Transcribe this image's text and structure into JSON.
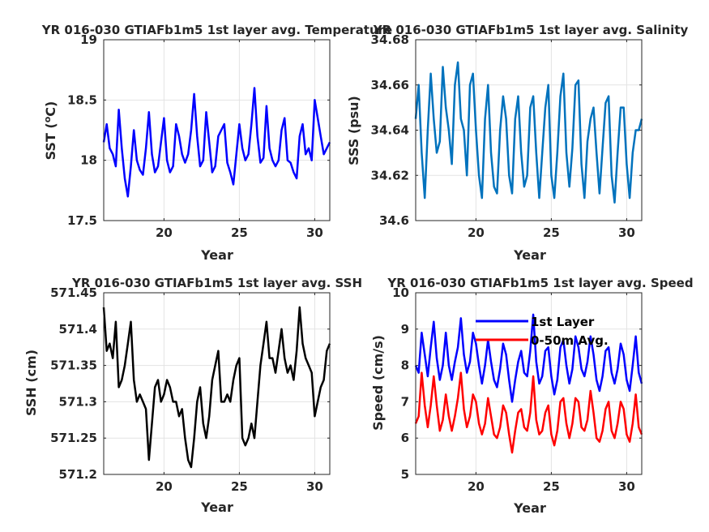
{
  "chart_data": [
    {
      "type": "line",
      "title": "YR 016-030 GTIAFb1m5 1st layer avg. Temperature",
      "xlabel": "Year",
      "ylabel": "SST (°C)",
      "ylabel_main": "SST (",
      "ylabel_sup": "o",
      "ylabel_tail": "C)",
      "xlim": [
        16,
        31
      ],
      "ylim": [
        17.5,
        19
      ],
      "xticks": [
        20,
        25,
        30
      ],
      "xtick_labels": [
        "20",
        "25",
        "30"
      ],
      "yticks": [
        17.5,
        18,
        18.5,
        19
      ],
      "ytick_labels": [
        "17.5",
        "18",
        "18.5",
        "19"
      ],
      "grid": true,
      "series": [
        {
          "color": "#0000ff",
          "x": [
            16.0,
            16.2,
            16.4,
            16.6,
            16.8,
            17.0,
            17.2,
            17.4,
            17.6,
            17.8,
            18.0,
            18.2,
            18.4,
            18.6,
            18.8,
            19.0,
            19.2,
            19.4,
            19.6,
            19.8,
            20.0,
            20.2,
            20.4,
            20.6,
            20.8,
            21.0,
            21.2,
            21.4,
            21.6,
            21.8,
            22.0,
            22.2,
            22.4,
            22.6,
            22.8,
            23.0,
            23.2,
            23.4,
            23.6,
            23.8,
            24.0,
            24.2,
            24.4,
            24.6,
            24.8,
            25.0,
            25.2,
            25.4,
            25.6,
            25.8,
            26.0,
            26.2,
            26.4,
            26.6,
            26.8,
            27.0,
            27.2,
            27.4,
            27.6,
            27.8,
            28.0,
            28.2,
            28.4,
            28.6,
            28.8,
            29.0,
            29.2,
            29.4,
            29.6,
            29.8,
            30.0,
            30.2,
            30.4,
            30.6,
            30.8,
            31.0
          ],
          "values": [
            18.15,
            18.3,
            18.1,
            18.05,
            17.95,
            18.42,
            18.1,
            17.85,
            17.7,
            17.95,
            18.25,
            18.0,
            17.92,
            17.88,
            18.1,
            18.4,
            18.05,
            17.9,
            17.95,
            18.15,
            18.35,
            18.0,
            17.9,
            17.95,
            18.3,
            18.2,
            18.05,
            17.98,
            18.05,
            18.25,
            18.55,
            18.2,
            17.95,
            18.0,
            18.4,
            18.15,
            17.9,
            17.95,
            18.2,
            18.25,
            18.3,
            17.98,
            17.9,
            17.8,
            18.05,
            18.3,
            18.1,
            18.0,
            18.05,
            18.3,
            18.6,
            18.2,
            17.98,
            18.02,
            18.45,
            18.1,
            18.0,
            17.95,
            18.0,
            18.25,
            18.35,
            18.0,
            17.98,
            17.9,
            17.85,
            18.2,
            18.3,
            18.05,
            18.1,
            18.0,
            18.5,
            18.35,
            18.2,
            18.05,
            18.1,
            18.15
          ]
        }
      ]
    },
    {
      "type": "line",
      "title": "YR 016-030 GTIAFb1m5 1st layer avg. Salinity",
      "xlabel": "Year",
      "ylabel": "SSS (psu)",
      "xlim": [
        16,
        31
      ],
      "ylim": [
        34.6,
        34.68
      ],
      "xticks": [
        20,
        25,
        30
      ],
      "xtick_labels": [
        "20",
        "25",
        "30"
      ],
      "yticks": [
        34.6,
        34.62,
        34.64,
        34.66,
        34.68
      ],
      "ytick_labels": [
        "34.6",
        "34.62",
        "34.64",
        "34.66",
        "34.68"
      ],
      "grid": true,
      "series": [
        {
          "color": "#0072bd",
          "x": [
            16.0,
            16.2,
            16.4,
            16.6,
            16.8,
            17.0,
            17.2,
            17.4,
            17.6,
            17.8,
            18.0,
            18.2,
            18.4,
            18.6,
            18.8,
            19.0,
            19.2,
            19.4,
            19.6,
            19.8,
            20.0,
            20.2,
            20.4,
            20.6,
            20.8,
            21.0,
            21.2,
            21.4,
            21.6,
            21.8,
            22.0,
            22.2,
            22.4,
            22.6,
            22.8,
            23.0,
            23.2,
            23.4,
            23.6,
            23.8,
            24.0,
            24.2,
            24.4,
            24.6,
            24.8,
            25.0,
            25.2,
            25.4,
            25.6,
            25.8,
            26.0,
            26.2,
            26.4,
            26.6,
            26.8,
            27.0,
            27.2,
            27.4,
            27.6,
            27.8,
            28.0,
            28.2,
            28.4,
            28.6,
            28.8,
            29.0,
            29.2,
            29.4,
            29.6,
            29.8,
            30.0,
            30.2,
            30.4,
            30.6,
            30.8,
            31.0
          ],
          "values": [
            34.645,
            34.66,
            34.63,
            34.61,
            34.64,
            34.665,
            34.645,
            34.63,
            34.635,
            34.668,
            34.65,
            34.64,
            34.625,
            34.66,
            34.67,
            34.645,
            34.64,
            34.62,
            34.66,
            34.665,
            34.64,
            34.62,
            34.61,
            34.645,
            34.66,
            34.63,
            34.615,
            34.612,
            34.64,
            34.655,
            34.645,
            34.62,
            34.612,
            34.645,
            34.655,
            34.63,
            34.615,
            34.62,
            34.65,
            34.655,
            34.63,
            34.61,
            34.63,
            34.65,
            34.66,
            34.62,
            34.61,
            34.63,
            34.655,
            34.665,
            34.63,
            34.615,
            34.632,
            34.66,
            34.662,
            34.625,
            34.61,
            34.635,
            34.645,
            34.65,
            34.63,
            34.612,
            34.632,
            34.652,
            34.655,
            34.62,
            34.608,
            34.63,
            34.65,
            34.65,
            34.625,
            34.61,
            34.63,
            34.64,
            34.64,
            34.645
          ]
        }
      ]
    },
    {
      "type": "line",
      "title": "YR 016-030 GTIAFb1m5 1st layer avg. SSH",
      "xlabel": "Year",
      "ylabel": "SSH (cm)",
      "xlim": [
        16,
        31
      ],
      "ylim": [
        571.2,
        571.45
      ],
      "xticks": [
        20,
        25,
        30
      ],
      "xtick_labels": [
        "20",
        "25",
        "30"
      ],
      "yticks": [
        571.2,
        571.25,
        571.3,
        571.35,
        571.4,
        571.45
      ],
      "ytick_labels": [
        "571.2",
        "571.25",
        "571.3",
        "571.35",
        "571.4",
        "571.45"
      ],
      "grid": true,
      "series": [
        {
          "color": "#000000",
          "x": [
            16.0,
            16.2,
            16.4,
            16.6,
            16.8,
            17.0,
            17.2,
            17.4,
            17.6,
            17.8,
            18.0,
            18.2,
            18.4,
            18.6,
            18.8,
            19.0,
            19.2,
            19.4,
            19.6,
            19.8,
            20.0,
            20.2,
            20.4,
            20.6,
            20.8,
            21.0,
            21.2,
            21.4,
            21.6,
            21.8,
            22.0,
            22.2,
            22.4,
            22.6,
            22.8,
            23.0,
            23.2,
            23.4,
            23.6,
            23.8,
            24.0,
            24.2,
            24.4,
            24.6,
            24.8,
            25.0,
            25.2,
            25.4,
            25.6,
            25.8,
            26.0,
            26.2,
            26.4,
            26.6,
            26.8,
            27.0,
            27.2,
            27.4,
            27.6,
            27.8,
            28.0,
            28.2,
            28.4,
            28.6,
            28.8,
            29.0,
            29.2,
            29.4,
            29.6,
            29.8,
            30.0,
            30.2,
            30.4,
            30.6,
            30.8,
            31.0
          ],
          "values": [
            571.43,
            571.37,
            571.38,
            571.36,
            571.41,
            571.32,
            571.33,
            571.35,
            571.38,
            571.41,
            571.33,
            571.3,
            571.31,
            571.3,
            571.29,
            571.22,
            571.27,
            571.32,
            571.33,
            571.3,
            571.31,
            571.33,
            571.32,
            571.3,
            571.3,
            571.28,
            571.29,
            571.25,
            571.22,
            571.21,
            571.25,
            571.3,
            571.32,
            571.27,
            571.25,
            571.28,
            571.33,
            571.35,
            571.37,
            571.3,
            571.3,
            571.31,
            571.3,
            571.33,
            571.35,
            571.36,
            571.25,
            571.24,
            571.25,
            571.27,
            571.25,
            571.3,
            571.35,
            571.38,
            571.41,
            571.36,
            571.36,
            571.34,
            571.37,
            571.4,
            571.36,
            571.34,
            571.35,
            571.33,
            571.37,
            571.43,
            571.38,
            571.36,
            571.35,
            571.34,
            571.28,
            571.3,
            571.32,
            571.33,
            571.37,
            571.38
          ]
        }
      ]
    },
    {
      "type": "line",
      "title": "YR 016-030 GTIAFb1m5 1st layer avg. Speed",
      "xlabel": "Year",
      "ylabel": "Speed (cm/s)",
      "xlim": [
        16,
        31
      ],
      "ylim": [
        5,
        10
      ],
      "xticks": [
        20,
        25,
        30
      ],
      "xtick_labels": [
        "20",
        "25",
        "30"
      ],
      "yticks": [
        5,
        6,
        7,
        8,
        9,
        10
      ],
      "ytick_labels": [
        "5",
        "6",
        "7",
        "8",
        "9",
        "10"
      ],
      "grid": true,
      "legend": "top-center",
      "series": [
        {
          "name": "1st Layer",
          "color": "#0000ff",
          "x": [
            16.0,
            16.2,
            16.4,
            16.6,
            16.8,
            17.0,
            17.2,
            17.4,
            17.6,
            17.8,
            18.0,
            18.2,
            18.4,
            18.6,
            18.8,
            19.0,
            19.2,
            19.4,
            19.6,
            19.8,
            20.0,
            20.2,
            20.4,
            20.6,
            20.8,
            21.0,
            21.2,
            21.4,
            21.6,
            21.8,
            22.0,
            22.2,
            22.4,
            22.6,
            22.8,
            23.0,
            23.2,
            23.4,
            23.6,
            23.8,
            24.0,
            24.2,
            24.4,
            24.6,
            24.8,
            25.0,
            25.2,
            25.4,
            25.6,
            25.8,
            26.0,
            26.2,
            26.4,
            26.6,
            26.8,
            27.0,
            27.2,
            27.4,
            27.6,
            27.8,
            28.0,
            28.2,
            28.4,
            28.6,
            28.8,
            29.0,
            29.2,
            29.4,
            29.6,
            29.8,
            30.0,
            30.2,
            30.4,
            30.6,
            30.8,
            31.0
          ],
          "values": [
            8.0,
            7.8,
            8.9,
            8.3,
            7.7,
            8.5,
            9.2,
            8.2,
            7.6,
            8.0,
            8.9,
            8.0,
            7.6,
            8.1,
            8.5,
            9.3,
            8.3,
            7.8,
            8.1,
            8.9,
            8.6,
            8.0,
            7.5,
            8.0,
            8.7,
            8.1,
            7.6,
            7.4,
            7.9,
            8.6,
            8.3,
            7.6,
            7.0,
            7.6,
            8.1,
            8.4,
            7.8,
            7.7,
            8.4,
            9.4,
            8.1,
            7.5,
            7.7,
            8.4,
            8.5,
            7.7,
            7.2,
            7.6,
            8.5,
            8.7,
            8.0,
            7.5,
            7.9,
            8.8,
            8.5,
            7.9,
            7.7,
            8.1,
            8.8,
            8.3,
            7.6,
            7.3,
            7.7,
            8.4,
            8.5,
            7.8,
            7.5,
            7.9,
            8.6,
            8.3,
            7.6,
            7.3,
            8.0,
            8.8,
            7.8,
            7.5
          ]
        },
        {
          "name": "0-50m Avg.",
          "color": "#ff0000",
          "x": [
            16.0,
            16.2,
            16.4,
            16.6,
            16.8,
            17.0,
            17.2,
            17.4,
            17.6,
            17.8,
            18.0,
            18.2,
            18.4,
            18.6,
            18.8,
            19.0,
            19.2,
            19.4,
            19.6,
            19.8,
            20.0,
            20.2,
            20.4,
            20.6,
            20.8,
            21.0,
            21.2,
            21.4,
            21.6,
            21.8,
            22.0,
            22.2,
            22.4,
            22.6,
            22.8,
            23.0,
            23.2,
            23.4,
            23.6,
            23.8,
            24.0,
            24.2,
            24.4,
            24.6,
            24.8,
            25.0,
            25.2,
            25.4,
            25.6,
            25.8,
            26.0,
            26.2,
            26.4,
            26.6,
            26.8,
            27.0,
            27.2,
            27.4,
            27.6,
            27.8,
            28.0,
            28.2,
            28.4,
            28.6,
            28.8,
            29.0,
            29.2,
            29.4,
            29.6,
            29.8,
            30.0,
            30.2,
            30.4,
            30.6,
            30.8,
            31.0
          ],
          "values": [
            6.4,
            6.6,
            7.8,
            6.9,
            6.3,
            6.9,
            7.7,
            6.9,
            6.2,
            6.5,
            7.2,
            6.6,
            6.2,
            6.6,
            7.1,
            7.8,
            6.8,
            6.3,
            6.6,
            7.2,
            7.0,
            6.4,
            6.1,
            6.4,
            7.1,
            6.6,
            6.1,
            6.0,
            6.3,
            6.9,
            6.7,
            6.1,
            5.6,
            6.2,
            6.7,
            6.8,
            6.3,
            6.2,
            6.7,
            7.7,
            6.5,
            6.1,
            6.2,
            6.7,
            6.9,
            6.1,
            5.8,
            6.2,
            7.0,
            7.1,
            6.4,
            6.0,
            6.4,
            7.1,
            7.0,
            6.3,
            6.2,
            6.5,
            7.3,
            6.7,
            6.0,
            5.9,
            6.2,
            6.8,
            7.0,
            6.2,
            6.0,
            6.4,
            7.0,
            6.8,
            6.1,
            5.9,
            6.4,
            7.2,
            6.3,
            6.1
          ]
        }
      ]
    }
  ]
}
